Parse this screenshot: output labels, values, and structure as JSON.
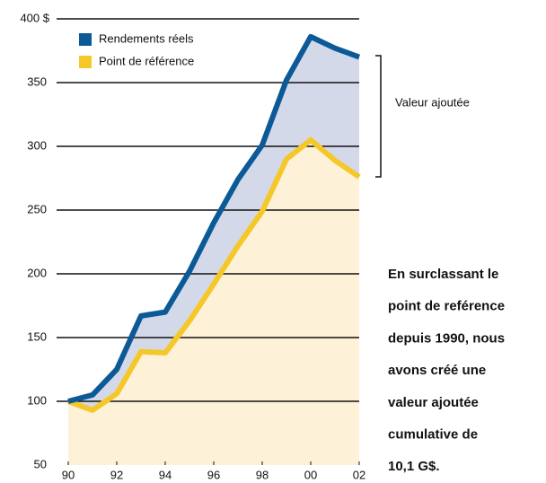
{
  "chart_data": {
    "type": "line",
    "categories": [
      "90",
      null,
      "92",
      null,
      "94",
      null,
      "96",
      null,
      "98",
      null,
      "00",
      null,
      "02"
    ],
    "series": [
      {
        "name": "Rendements réels",
        "color": "#0b5a97",
        "fill": "#d4d9ea",
        "values": [
          100,
          105,
          125,
          167,
          170,
          202,
          240,
          274,
          301,
          352,
          386,
          377,
          370
        ]
      },
      {
        "name": "Point de référence",
        "color": "#f5c82a",
        "fill": "#fdf1d8",
        "values": [
          100,
          93,
          106,
          139,
          138,
          163,
          192,
          222,
          249,
          290,
          305,
          289,
          276
        ]
      }
    ],
    "ylim": [
      50,
      400
    ],
    "yticks": [
      50,
      100,
      150,
      200,
      250,
      300,
      350,
      {
        "value": 400,
        "label": "400 $"
      }
    ],
    "grid": true,
    "legend": "upper left",
    "annotation": "Valeur ajoutée",
    "note_lines": [
      "En surclassant le",
      "point de reférence",
      "depuis 1990, nous",
      "avons créé une",
      "valeur ajoutée",
      "cumulative de",
      "10,1 G$."
    ]
  }
}
